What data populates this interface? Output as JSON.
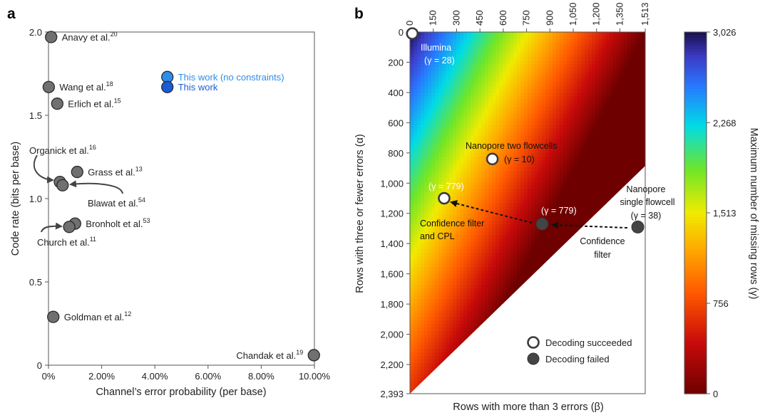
{
  "chart_data": [
    {
      "panel_label": "a",
      "type": "scatter",
      "xlabel": "Channel’s error probability (per base)",
      "ylabel": "Code rate (bits per base)",
      "xlim": [
        0,
        0.1
      ],
      "ylim": [
        0,
        2.0
      ],
      "xticks": [
        {
          "value": 0,
          "label": "0%"
        },
        {
          "value": 0.02,
          "label": "2.00%"
        },
        {
          "value": 0.04,
          "label": "4.00%"
        },
        {
          "value": 0.06,
          "label": "6.00%"
        },
        {
          "value": 0.08,
          "label": "8.00%"
        },
        {
          "value": 0.1,
          "label": "10.00%"
        }
      ],
      "yticks": [
        {
          "value": 0,
          "label": "0"
        },
        {
          "value": 0.5,
          "label": "0.5"
        },
        {
          "value": 1.0,
          "label": "1.0"
        },
        {
          "value": 1.5,
          "label": "1.5"
        },
        {
          "value": 2.0,
          "label": "2.0"
        }
      ],
      "points": [
        {
          "name": "Anavy et al.",
          "ref": "20",
          "x": 0.001,
          "y": 1.97,
          "color": "#707070",
          "label_side": "right"
        },
        {
          "name": "Wang et al.",
          "ref": "18",
          "x": 0.0001,
          "y": 1.67,
          "color": "#707070",
          "label_side": "right"
        },
        {
          "name": "Erlich et al.",
          "ref": "15",
          "x": 0.0033,
          "y": 1.57,
          "color": "#707070",
          "label_side": "right"
        },
        {
          "name": "Grass et al.",
          "ref": "13",
          "x": 0.0108,
          "y": 1.16,
          "color": "#707070",
          "label_side": "right"
        },
        {
          "name": "Organick et al.",
          "ref": "16",
          "x": 0.0043,
          "y": 1.1,
          "color": "#707070",
          "label_side": "callout-upper-left"
        },
        {
          "name": "Blawat et al.",
          "ref": "54",
          "x": 0.0053,
          "y": 1.08,
          "color": "#707070",
          "label_side": "callout-lower-right"
        },
        {
          "name": "Bronholt et al.",
          "ref": "53",
          "x": 0.01,
          "y": 0.85,
          "color": "#707070",
          "label_side": "right"
        },
        {
          "name": "Church et al.",
          "ref": "11",
          "x": 0.0078,
          "y": 0.83,
          "color": "#707070",
          "label_side": "callout-lower-left"
        },
        {
          "name": "Goldman et al.",
          "ref": "12",
          "x": 0.0018,
          "y": 0.29,
          "color": "#707070",
          "label_side": "right"
        },
        {
          "name": "Chandak et al.",
          "ref": "19",
          "x": 0.0998,
          "y": 0.06,
          "color": "#707070",
          "label_side": "left"
        },
        {
          "name": "This work (no constraints)",
          "ref": "",
          "x": 0.0447,
          "y": 1.73,
          "color": "#2e8de8",
          "label_color": "#2e8de8",
          "label_side": "right"
        },
        {
          "name": "This work",
          "ref": "",
          "x": 0.0447,
          "y": 1.67,
          "color": "#1a5cd6",
          "label_color": "#1a5cd6",
          "label_side": "right"
        }
      ]
    },
    {
      "panel_label": "b",
      "type": "heatmap",
      "xlabel": "Rows with more than 3 errors (β)",
      "ylabel": "Rows with three or fewer errors (α)",
      "colorbar_label": "Maximum number of missing rows (γ)",
      "xlim": [
        0,
        1513
      ],
      "ylim": [
        0,
        2393
      ],
      "y_inverted": true,
      "x_axis_position": "top",
      "xticks": [
        0,
        150,
        300,
        450,
        600,
        750,
        900,
        1050,
        1200,
        1350,
        1513
      ],
      "xtick_labels": [
        "0",
        "150",
        "300",
        "450",
        "600",
        "750",
        "900",
        "1,050",
        "1,200",
        "1,350",
        "1,513"
      ],
      "yticks": [
        0,
        200,
        400,
        600,
        800,
        1000,
        1200,
        1400,
        1600,
        1800,
        2000,
        2200,
        2393
      ],
      "ytick_labels": [
        "0",
        "200",
        "400",
        "600",
        "800",
        "1,000",
        "1,200",
        "1,400",
        "1,600",
        "1,800",
        "2,000",
        "2,200",
        "2,393"
      ],
      "heatmap_rule": "γ = max(0, 3026 − 2·β − α), blank where α + 1.58·β > 2393",
      "colorbar": {
        "min": 0,
        "max": 3026,
        "ticks": [
          0,
          756,
          1513,
          2268,
          3026
        ],
        "tick_labels": [
          "0",
          "756",
          "1,513",
          "2,268",
          "3,026"
        ],
        "colormap": "jet-like (dark red → red → orange → yellow → green → cyan → blue → dark navy)"
      },
      "legend": {
        "position": "bottom-right",
        "items": [
          {
            "label": "Decoding succeeded",
            "marker": "open-circle"
          },
          {
            "label": "Decoding failed",
            "marker": "filled-circle"
          }
        ]
      },
      "points": [
        {
          "beta": 15,
          "alpha": 10,
          "status": "succeeded",
          "labels": [
            "Illumina",
            "(γ = 28)"
          ],
          "label_color": "#ffffff",
          "label_position": "below-right"
        },
        {
          "beta": 530,
          "alpha": 840,
          "status": "succeeded",
          "labels": [
            "Nanopore two flowcells",
            "(γ = 10)"
          ],
          "label_color": "#111111",
          "label_position": "above-and-right"
        },
        {
          "beta": 220,
          "alpha": 1100,
          "status": "succeeded",
          "labels": [
            "(γ = 779)",
            "Confidence filter",
            "and CPL"
          ],
          "label_color": "mixed",
          "label_position": "above-and-below"
        },
        {
          "beta": 850,
          "alpha": 1270,
          "status": "failed",
          "labels": [
            "(γ = 779)"
          ],
          "label_color": "#ffffff",
          "label_position": "above"
        },
        {
          "beta": 1465,
          "alpha": 1290,
          "status": "failed",
          "labels": [
            "Nanopore",
            "single flowcell",
            "(γ = 38)",
            "Confidence",
            "filter"
          ],
          "label_color": "#111111",
          "label_position": "above-and-below"
        }
      ],
      "arrows": [
        {
          "from": {
            "beta": 1465,
            "alpha": 1290
          },
          "to": {
            "beta": 850,
            "alpha": 1270
          },
          "style": "dashed"
        },
        {
          "from": {
            "beta": 850,
            "alpha": 1270
          },
          "to": {
            "beta": 220,
            "alpha": 1100
          },
          "style": "dashed"
        }
      ]
    }
  ]
}
